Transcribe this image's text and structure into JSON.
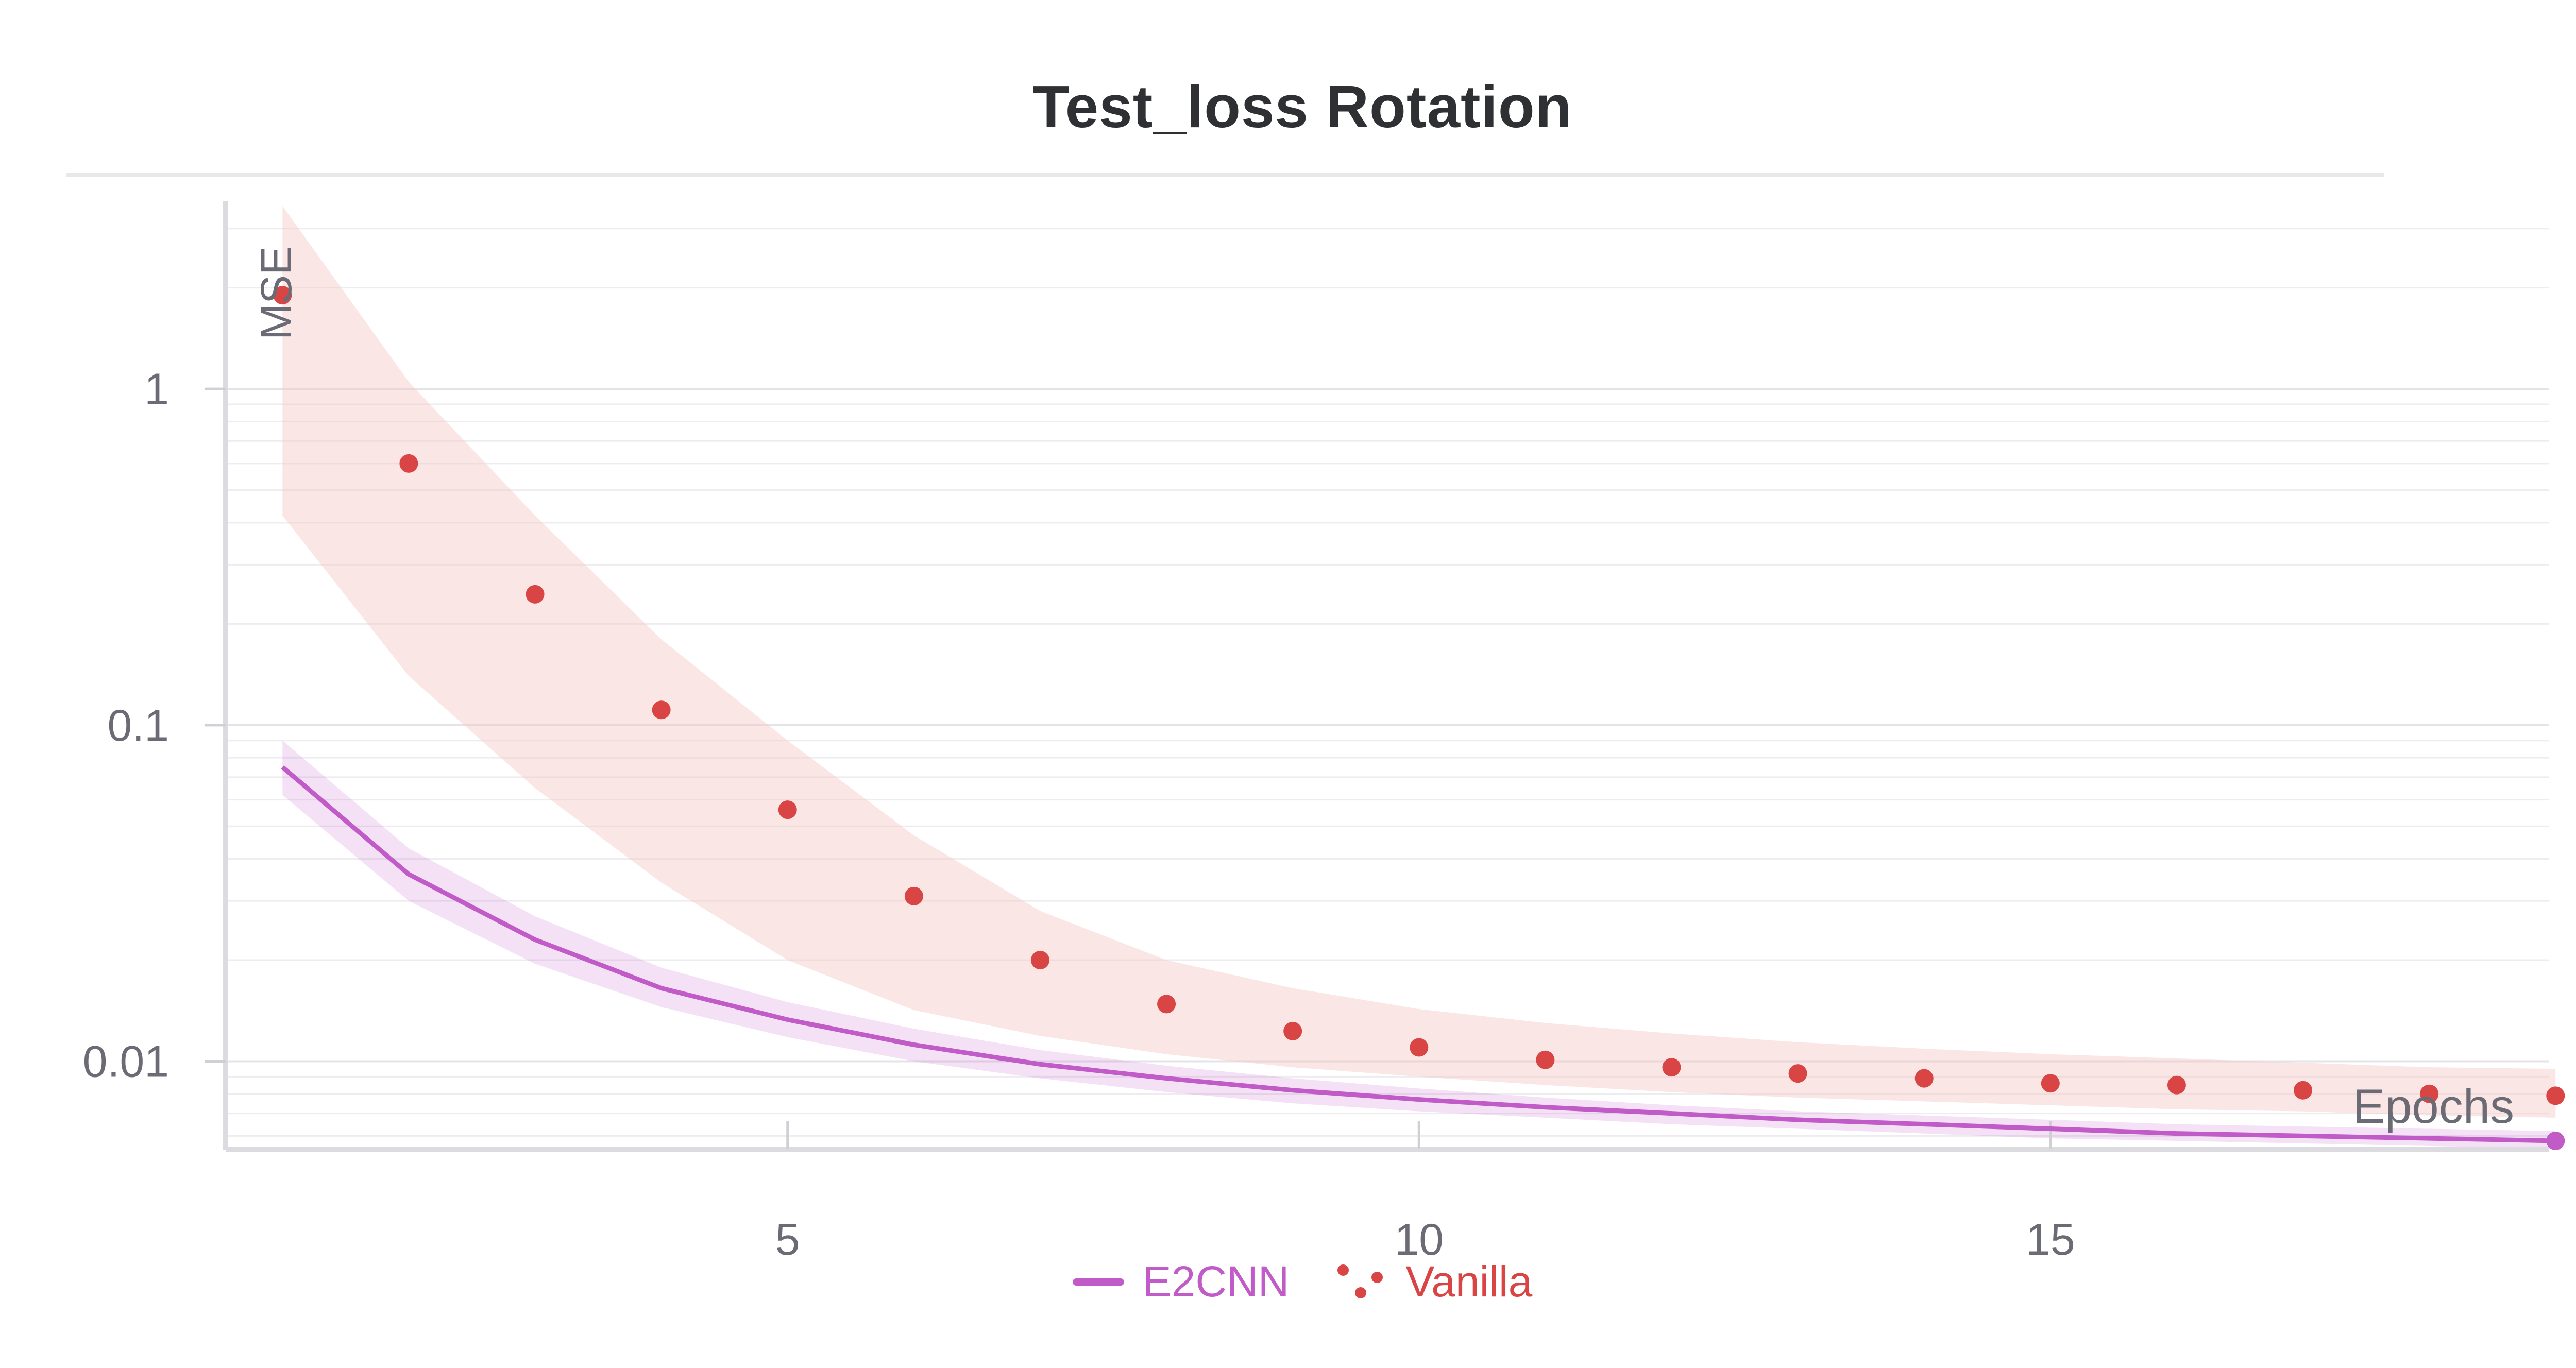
{
  "chart_data": {
    "type": "line",
    "title": "Test_loss Rotation",
    "xlabel": "Epochs",
    "ylabel": "MSE",
    "xlim": [
      0.55,
      18.95
    ],
    "ylim": [
      0.0055,
      3.5
    ],
    "y_scale": "log",
    "x_ticks": [
      5,
      10,
      15
    ],
    "x_tick_labels": [
      "5",
      "10",
      "15"
    ],
    "y_ticks": [
      0.01,
      0.1,
      1
    ],
    "y_tick_labels": [
      "0.01",
      "0.1",
      "1"
    ],
    "grid": true,
    "legend_position": "bottom-center",
    "series": [
      {
        "name": "E2CNN",
        "style": "line",
        "color": "#c05bc8",
        "band_color": "#c05bc8",
        "x": [
          1,
          2,
          3,
          4,
          5,
          6,
          7,
          8,
          9,
          10,
          11,
          12,
          13,
          14,
          15,
          16,
          17,
          18,
          19
        ],
        "values": [
          0.075,
          0.036,
          0.023,
          0.0165,
          0.0133,
          0.0112,
          0.0098,
          0.0089,
          0.0082,
          0.0077,
          0.0073,
          0.007,
          0.0067,
          0.0065,
          0.0063,
          0.0061,
          0.006,
          0.0059,
          0.0058
        ],
        "band_lower": [
          0.062,
          0.03,
          0.0195,
          0.0145,
          0.0118,
          0.01,
          0.0089,
          0.0081,
          0.0075,
          0.0071,
          0.0068,
          0.0065,
          0.0063,
          0.0061,
          0.0059,
          0.0058,
          0.0057,
          0.0056,
          0.0055
        ],
        "band_upper": [
          0.09,
          0.043,
          0.027,
          0.019,
          0.015,
          0.0125,
          0.0108,
          0.0097,
          0.0089,
          0.0083,
          0.0078,
          0.0074,
          0.0071,
          0.0069,
          0.0067,
          0.0065,
          0.0064,
          0.0063,
          0.0062
        ]
      },
      {
        "name": "Vanilla",
        "style": "points",
        "color": "#d94545",
        "band_color": "#f5c8c3",
        "x": [
          1,
          2,
          3,
          4,
          5,
          6,
          7,
          8,
          9,
          10,
          11,
          12,
          13,
          14,
          15,
          16,
          17,
          18,
          19
        ],
        "values": [
          1.9,
          0.6,
          0.245,
          0.111,
          0.056,
          0.031,
          0.02,
          0.0148,
          0.0123,
          0.011,
          0.0101,
          0.0096,
          0.0092,
          0.0089,
          0.0086,
          0.0085,
          0.0082,
          0.008,
          0.0079
        ],
        "band_lower": [
          0.42,
          0.14,
          0.065,
          0.034,
          0.02,
          0.0142,
          0.0119,
          0.0105,
          0.0096,
          0.009,
          0.0085,
          0.0081,
          0.0078,
          0.0076,
          0.0074,
          0.0072,
          0.0071,
          0.0069,
          0.0068
        ],
        "band_upper": [
          3.5,
          1.05,
          0.42,
          0.18,
          0.09,
          0.047,
          0.028,
          0.02,
          0.0165,
          0.0143,
          0.013,
          0.0121,
          0.0114,
          0.0109,
          0.0105,
          0.0102,
          0.0099,
          0.0096,
          0.0095
        ]
      }
    ]
  }
}
